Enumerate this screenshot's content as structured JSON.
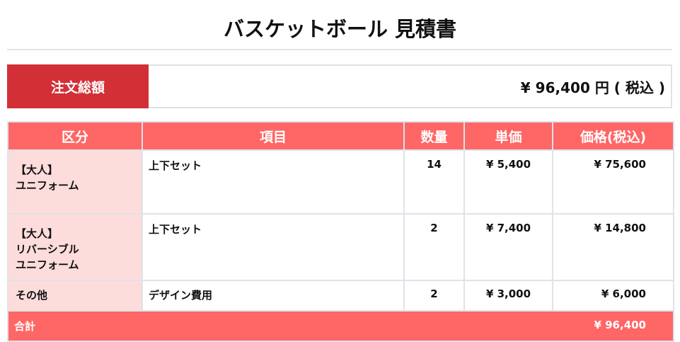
{
  "title": "バスケットボール 見積書",
  "summary": {
    "label": "注文総額",
    "value": "¥ 96,400 円 ( 税込 )"
  },
  "colors": {
    "summary_label": "#d32f37",
    "header": "#ff6666",
    "category_bg": "#fddcdc",
    "border": "#dfe3e8"
  },
  "table": {
    "headers": [
      "区分",
      "項目",
      "数量",
      "単価",
      "価格(税込)"
    ],
    "rows": [
      {
        "category": [
          "【大人】",
          "ユニフォーム"
        ],
        "item": "上下セット",
        "qty": "14",
        "unit": "¥ 5,400",
        "price": "¥ 75,600"
      },
      {
        "category": [
          "【大人】",
          "リバーシブル",
          "ユニフォーム"
        ],
        "item": "上下セット",
        "qty": "2",
        "unit": "¥ 7,400",
        "price": "¥ 14,800"
      },
      {
        "category": [
          "その他"
        ],
        "item": "デザイン費用",
        "qty": "2",
        "unit": "¥ 3,000",
        "price": "¥ 6,000"
      }
    ],
    "total": {
      "label": "合計",
      "value": "¥ 96,400"
    }
  }
}
